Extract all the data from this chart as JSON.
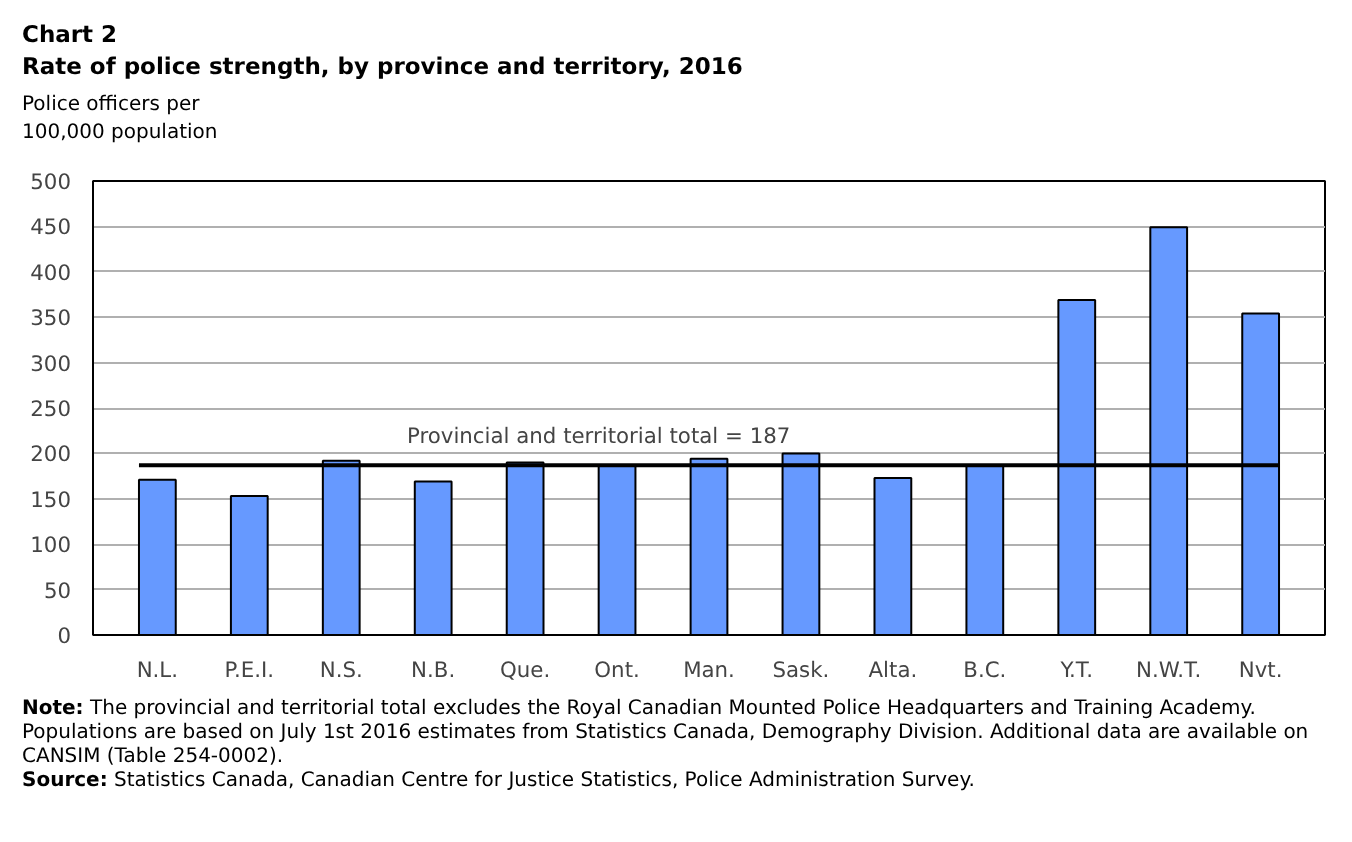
{
  "chart_data": {
    "type": "bar",
    "title": "Chart 2",
    "subtitle": "Rate of police strength, by province and territory, 2016",
    "ylabel": "Police officers per 100,000 population",
    "categories": [
      "N.L.",
      "P.E.I.",
      "N.S.",
      "N.B.",
      "Que.",
      "Ont.",
      "Man.",
      "Sask.",
      "Alta.",
      "B.C.",
      "Y.T.",
      "N.W.T.",
      "Nvt."
    ],
    "values": [
      171,
      153,
      192,
      169,
      190,
      186,
      194,
      200,
      173,
      186,
      369,
      449,
      354
    ],
    "color": "#6699ff",
    "ylim": [
      0,
      500
    ],
    "yticks": [
      0,
      50,
      100,
      150,
      200,
      250,
      300,
      350,
      400,
      450,
      500
    ],
    "grid": "y",
    "ref_lines": [
      {
        "axis": "y",
        "value": 187,
        "label": "Provincial and territorial total = 187",
        "color": "#000000"
      }
    ],
    "annotations": [
      "Note: The provincial and territorial total excludes the Royal Canadian Mounted Police Headquarters and Training Academy. Populations are based on July 1st 2016 estimates from Statistics Canada, Demography Division. Additional data are available on CANSIM (Table 254-0002).",
      "Source: Statistics Canada, Canadian Centre for Justice Statistics, Police Administration Survey."
    ]
  }
}
